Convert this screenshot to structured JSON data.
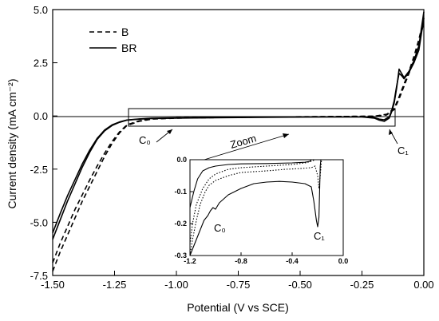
{
  "chart_data": [
    {
      "type": "line",
      "xlabel": "Potential (V vs SCE)",
      "ylabel": "Current density (mA cm⁻²)",
      "xlim": [
        -1.5,
        0.0
      ],
      "ylim": [
        -7.5,
        5.0
      ],
      "x_ticks": [
        "-1.50",
        "-1.25",
        "-1.00",
        "-0.75",
        "-0.50",
        "-0.25",
        "0.00"
      ],
      "y_ticks": [
        "5.0",
        "2.5",
        "0.0",
        "-2.5",
        "-5.0",
        "-7.5"
      ],
      "legend": {
        "position": "top-left",
        "entries": [
          "B",
          "BR"
        ]
      },
      "grid": false,
      "annotations": {
        "c0": "C₀",
        "c1": "C₁",
        "zoom": "Zoom"
      },
      "series": [
        {
          "name": "B",
          "style": "dashed",
          "color": "#000000",
          "points": [
            [
              -1.5,
              -7.3
            ],
            [
              -1.47,
              -6.4
            ],
            [
              -1.44,
              -5.6
            ],
            [
              -1.41,
              -4.8
            ],
            [
              -1.38,
              -4.0
            ],
            [
              -1.35,
              -3.3
            ],
            [
              -1.32,
              -2.6
            ],
            [
              -1.29,
              -1.9
            ],
            [
              -1.26,
              -1.3
            ],
            [
              -1.23,
              -0.8
            ],
            [
              -1.2,
              -0.45
            ],
            [
              -1.15,
              -0.25
            ],
            [
              -1.1,
              -0.15
            ],
            [
              -1.0,
              -0.1
            ],
            [
              -0.8,
              -0.07
            ],
            [
              -0.6,
              -0.05
            ],
            [
              -0.4,
              -0.03
            ],
            [
              -0.2,
              -0.01
            ],
            [
              -0.15,
              0.05
            ],
            [
              -0.12,
              0.3
            ],
            [
              -0.1,
              0.8
            ],
            [
              -0.08,
              1.4
            ],
            [
              -0.06,
              2.0
            ],
            [
              -0.04,
              2.6
            ],
            [
              -0.02,
              3.4
            ],
            [
              0.0,
              4.4
            ]
          ]
        },
        {
          "name": "B",
          "style": "dashed",
          "color": "#000000",
          "points": [
            [
              -1.5,
              -6.9
            ],
            [
              -1.47,
              -6.0
            ],
            [
              -1.44,
              -5.2
            ],
            [
              -1.41,
              -4.4
            ],
            [
              -1.38,
              -3.7
            ],
            [
              -1.35,
              -3.0
            ],
            [
              -1.32,
              -2.35
            ],
            [
              -1.29,
              -1.75
            ],
            [
              -1.26,
              -1.2
            ],
            [
              -1.23,
              -0.75
            ],
            [
              -1.2,
              -0.42
            ],
            [
              -1.15,
              -0.23
            ],
            [
              -1.1,
              -0.14
            ],
            [
              -1.0,
              -0.09
            ],
            [
              -0.8,
              -0.06
            ],
            [
              -0.6,
              -0.045
            ],
            [
              -0.4,
              -0.03
            ],
            [
              -0.2,
              -0.01
            ],
            [
              -0.15,
              0.08
            ],
            [
              -0.12,
              0.35
            ],
            [
              -0.1,
              0.9
            ],
            [
              -0.08,
              1.5
            ],
            [
              -0.06,
              2.1
            ],
            [
              -0.04,
              2.8
            ],
            [
              -0.02,
              3.6
            ],
            [
              0.0,
              4.6
            ]
          ]
        },
        {
          "name": "BR",
          "style": "solid",
          "color": "#000000",
          "points": [
            [
              -1.5,
              -5.8
            ],
            [
              -1.47,
              -4.9
            ],
            [
              -1.44,
              -4.0
            ],
            [
              -1.41,
              -3.2
            ],
            [
              -1.38,
              -2.4
            ],
            [
              -1.35,
              -1.7
            ],
            [
              -1.32,
              -1.1
            ],
            [
              -1.29,
              -0.7
            ],
            [
              -1.26,
              -0.45
            ],
            [
              -1.23,
              -0.3
            ],
            [
              -1.2,
              -0.2
            ],
            [
              -1.15,
              -0.15
            ],
            [
              -1.1,
              -0.12
            ],
            [
              -1.0,
              -0.1
            ],
            [
              -0.8,
              -0.08
            ],
            [
              -0.6,
              -0.06
            ],
            [
              -0.4,
              -0.05
            ],
            [
              -0.25,
              -0.05
            ],
            [
              -0.2,
              -0.1
            ],
            [
              -0.18,
              -0.2
            ],
            [
              -0.16,
              -0.25
            ],
            [
              -0.14,
              -0.1
            ],
            [
              -0.13,
              0.2
            ],
            [
              -0.12,
              0.6
            ],
            [
              -0.11,
              1.3
            ],
            [
              -0.1,
              2.2
            ],
            [
              -0.09,
              2.0
            ],
            [
              -0.08,
              1.8
            ],
            [
              -0.06,
              2.1
            ],
            [
              -0.04,
              2.6
            ],
            [
              -0.02,
              3.3
            ],
            [
              0.0,
              4.9
            ]
          ]
        },
        {
          "name": "BR",
          "style": "solid",
          "color": "#000000",
          "points": [
            [
              -1.5,
              -5.5
            ],
            [
              -1.47,
              -4.6
            ],
            [
              -1.44,
              -3.75
            ],
            [
              -1.41,
              -3.0
            ],
            [
              -1.38,
              -2.25
            ],
            [
              -1.35,
              -1.6
            ],
            [
              -1.32,
              -1.05
            ],
            [
              -1.29,
              -0.66
            ],
            [
              -1.26,
              -0.42
            ],
            [
              -1.23,
              -0.28
            ],
            [
              -1.2,
              -0.19
            ],
            [
              -1.15,
              -0.14
            ],
            [
              -1.1,
              -0.11
            ],
            [
              -1.0,
              -0.09
            ],
            [
              -0.8,
              -0.07
            ],
            [
              -0.6,
              -0.05
            ],
            [
              -0.4,
              -0.04
            ],
            [
              -0.25,
              -0.04
            ],
            [
              -0.2,
              -0.08
            ],
            [
              -0.18,
              -0.15
            ],
            [
              -0.16,
              -0.18
            ],
            [
              -0.14,
              -0.05
            ],
            [
              -0.13,
              0.25
            ],
            [
              -0.12,
              0.7
            ],
            [
              -0.11,
              1.4
            ],
            [
              -0.1,
              2.0
            ],
            [
              -0.09,
              1.9
            ],
            [
              -0.08,
              1.75
            ],
            [
              -0.06,
              2.05
            ],
            [
              -0.04,
              2.5
            ],
            [
              -0.02,
              3.1
            ],
            [
              0.0,
              4.6
            ]
          ]
        }
      ]
    },
    {
      "type": "line",
      "xlim": [
        -1.2,
        0.0
      ],
      "ylim": [
        -0.3,
        0.0
      ],
      "x_ticks": [
        "-1.2",
        "-0.8",
        "-0.4",
        "0.0"
      ],
      "y_ticks": [
        "0.0",
        "-0.1",
        "-0.2",
        "-0.3"
      ],
      "annotations": {
        "c0": "C₀",
        "c1": "C₁"
      },
      "series": [
        {
          "name": "B",
          "style": "dotted",
          "points": [
            [
              -1.2,
              -0.265
            ],
            [
              -1.18,
              -0.2
            ],
            [
              -1.15,
              -0.14
            ],
            [
              -1.1,
              -0.09
            ],
            [
              -1.05,
              -0.06
            ],
            [
              -1.0,
              -0.045
            ],
            [
              -0.9,
              -0.03
            ],
            [
              -0.8,
              -0.025
            ],
            [
              -0.6,
              -0.02
            ],
            [
              -0.4,
              -0.015
            ],
            [
              -0.3,
              -0.01
            ],
            [
              -0.25,
              -0.005
            ],
            [
              -0.22,
              0.0
            ]
          ]
        },
        {
          "name": "B",
          "style": "dotted",
          "points": [
            [
              -1.2,
              -0.3
            ],
            [
              -1.18,
              -0.25
            ],
            [
              -1.15,
              -0.19
            ],
            [
              -1.12,
              -0.14
            ],
            [
              -1.08,
              -0.1
            ],
            [
              -1.05,
              -0.08
            ],
            [
              -1.0,
              -0.065
            ],
            [
              -0.9,
              -0.05
            ],
            [
              -0.8,
              -0.04
            ],
            [
              -0.6,
              -0.035
            ],
            [
              -0.45,
              -0.03
            ],
            [
              -0.35,
              -0.028
            ],
            [
              -0.25,
              -0.025
            ],
            [
              -0.22,
              -0.02
            ],
            [
              -0.2,
              -0.05
            ],
            [
              -0.19,
              -0.09
            ],
            [
              -0.18,
              -0.05
            ],
            [
              -0.17,
              0.0
            ]
          ]
        },
        {
          "name": "BR",
          "style": "solid",
          "points": [
            [
              -1.2,
              -0.3
            ],
            [
              -1.18,
              -0.28
            ],
            [
              -1.15,
              -0.25
            ],
            [
              -1.12,
              -0.22
            ],
            [
              -1.09,
              -0.19
            ],
            [
              -1.06,
              -0.175
            ],
            [
              -1.04,
              -0.16
            ],
            [
              -1.02,
              -0.15
            ],
            [
              -1.0,
              -0.155
            ],
            [
              -0.97,
              -0.135
            ],
            [
              -0.9,
              -0.11
            ],
            [
              -0.8,
              -0.09
            ],
            [
              -0.7,
              -0.075
            ],
            [
              -0.6,
              -0.07
            ],
            [
              -0.5,
              -0.068
            ],
            [
              -0.4,
              -0.07
            ],
            [
              -0.3,
              -0.075
            ],
            [
              -0.25,
              -0.085
            ],
            [
              -0.23,
              -0.13
            ],
            [
              -0.21,
              -0.19
            ],
            [
              -0.2,
              -0.21
            ],
            [
              -0.19,
              -0.18
            ],
            [
              -0.185,
              -0.1
            ],
            [
              -0.18,
              -0.02
            ],
            [
              -0.175,
              0.0
            ]
          ]
        },
        {
          "name": "BR",
          "style": "solid",
          "points": [
            [
              -1.2,
              -0.15
            ],
            [
              -1.17,
              -0.1
            ],
            [
              -1.14,
              -0.06
            ],
            [
              -1.1,
              -0.035
            ],
            [
              -1.05,
              -0.025
            ],
            [
              -1.0,
              -0.02
            ],
            [
              -0.9,
              -0.015
            ],
            [
              -0.8,
              -0.013
            ],
            [
              -0.6,
              -0.012
            ],
            [
              -0.4,
              -0.01
            ],
            [
              -0.3,
              -0.008
            ],
            [
              -0.26,
              -0.005
            ],
            [
              -0.25,
              0.0
            ]
          ]
        }
      ]
    }
  ]
}
